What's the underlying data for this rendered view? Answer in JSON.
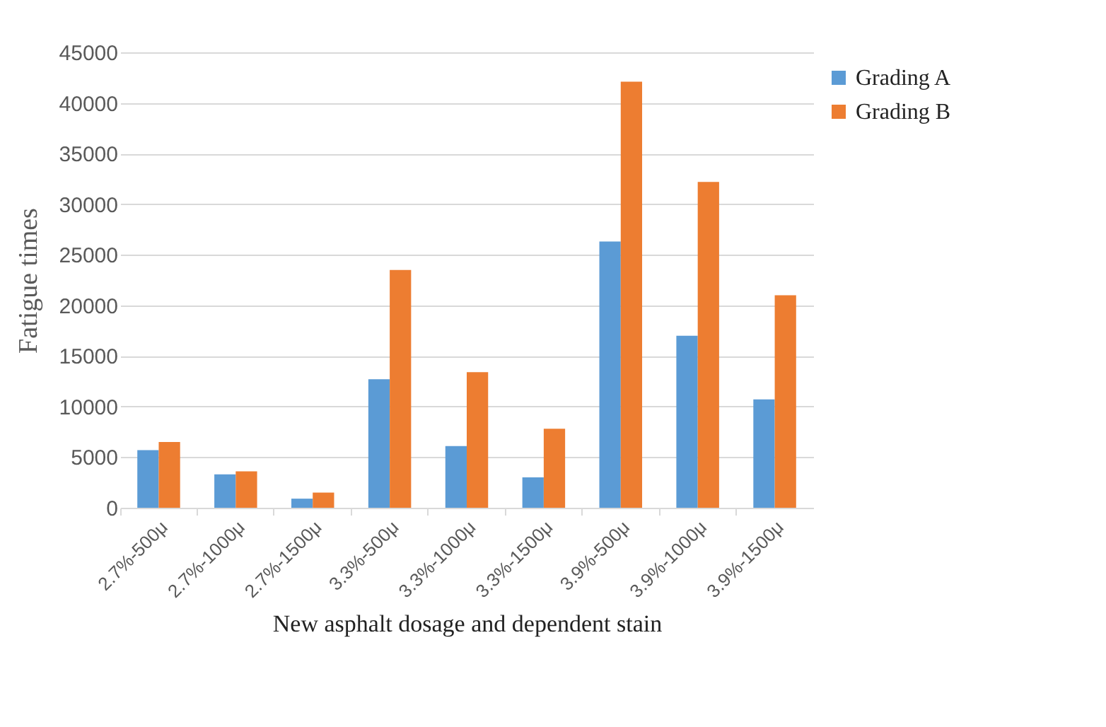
{
  "chart_data": {
    "type": "bar",
    "xlabel": "New asphalt dosage and dependent stain",
    "ylabel": "Fatigue times",
    "categories": [
      "2.7%-500μ",
      "2.7%-1000μ",
      "2.7%-1500μ",
      "3.3%-500μ",
      "3.3%-1000μ",
      "3.3%-1500μ",
      "3.9%-500μ",
      "3.9%-1000μ",
      "3.9%-1500μ"
    ],
    "series": [
      {
        "name": "Grading A",
        "color": "#5b9bd5",
        "values": [
          5700,
          3300,
          900,
          12700,
          6100,
          3000,
          26300,
          17000,
          10700
        ]
      },
      {
        "name": "Grading B",
        "color": "#ed7d31",
        "values": [
          6500,
          3600,
          1500,
          23500,
          13400,
          7800,
          42100,
          32200,
          21000
        ]
      }
    ],
    "ylim": [
      0,
      45000
    ],
    "yticks": [
      0,
      5000,
      10000,
      15000,
      20000,
      25000,
      30000,
      35000,
      40000,
      45000
    ],
    "grid": "y",
    "legend": "top right"
  }
}
